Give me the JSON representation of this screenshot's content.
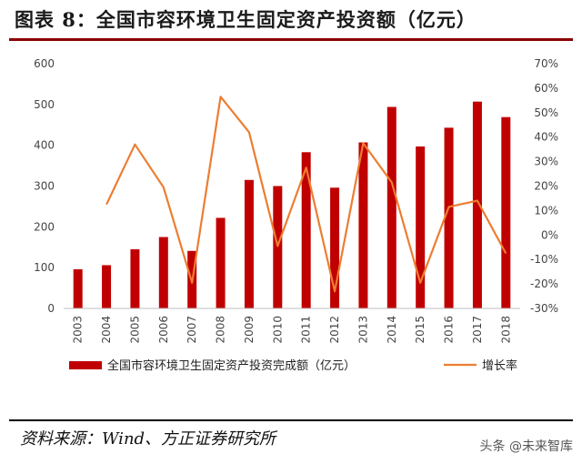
{
  "title": "图表 8：全国市容环境卫生固定资产投资额（亿元）",
  "source": "资料来源：Wind、方正证券研究所",
  "watermark": "头条 @未来智库",
  "colors": {
    "bar": "#c00000",
    "line": "#ed7d31",
    "title_rule": "#8b0000"
  },
  "chart_data": {
    "type": "bar",
    "categories": [
      "2003",
      "2004",
      "2005",
      "2006",
      "2007",
      "2008",
      "2009",
      "2010",
      "2011",
      "2012",
      "2013",
      "2014",
      "2015",
      "2016",
      "2017",
      "2018"
    ],
    "series": [
      {
        "name": "全国市容环境卫生固定资产投资完成额（亿元）",
        "type": "bar",
        "axis": "left",
        "values": [
          96,
          106,
          145,
          175,
          141,
          222,
          315,
          300,
          383,
          296,
          407,
          494,
          397,
          443,
          507,
          469
        ]
      },
      {
        "name": "增长率",
        "type": "line",
        "axis": "right",
        "values": [
          null,
          12.5,
          37,
          19.5,
          -19.5,
          56.5,
          42,
          -4.5,
          27.5,
          -23,
          37.5,
          21.5,
          -19.5,
          11.5,
          14,
          -7.5
        ]
      }
    ],
    "y_left": {
      "lim": [
        0,
        600
      ],
      "ticks": [
        "0",
        "100",
        "200",
        "300",
        "400",
        "500",
        "600"
      ]
    },
    "y_right": {
      "lim": [
        -30,
        70
      ],
      "ticks": [
        "-30%",
        "-20%",
        "-10%",
        "0%",
        "10%",
        "20%",
        "30%",
        "40%",
        "50%",
        "60%",
        "70%"
      ]
    },
    "grid": false,
    "legend_position": "bottom"
  }
}
